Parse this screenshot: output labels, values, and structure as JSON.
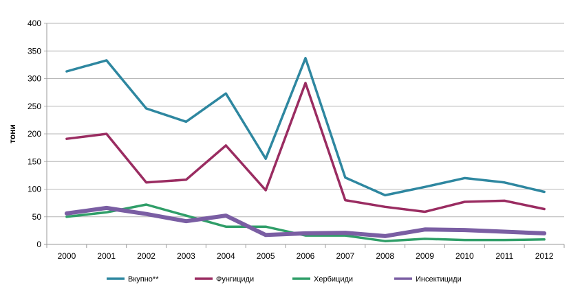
{
  "chart_data": {
    "type": "line",
    "title": "",
    "xlabel": "",
    "ylabel": "тони",
    "ylim": [
      0,
      400
    ],
    "yticks": [
      0,
      50,
      100,
      150,
      200,
      250,
      300,
      350,
      400
    ],
    "grid": true,
    "legend_position": "bottom",
    "categories": [
      "2000",
      "2001",
      "2002",
      "2003",
      "2004",
      "2005",
      "2006",
      "2007",
      "2008",
      "2009",
      "2010",
      "2011",
      "2012"
    ],
    "series": [
      {
        "name": "Вкупно**",
        "color": "#2e87a0",
        "width": 3.5,
        "values": [
          313,
          333,
          246,
          222,
          273,
          155,
          337,
          121,
          89,
          104,
          120,
          112,
          95
        ]
      },
      {
        "name": "Фунгициди",
        "color": "#9a2c61",
        "width": 3.5,
        "values": [
          191,
          200,
          112,
          117,
          179,
          98,
          292,
          80,
          68,
          59,
          77,
          79,
          64
        ]
      },
      {
        "name": "Хербициди",
        "color": "#2f9e68",
        "width": 3.5,
        "values": [
          50,
          58,
          72,
          52,
          32,
          32,
          16,
          16,
          6,
          10,
          8,
          8,
          9
        ]
      },
      {
        "name": "Инсектициди",
        "color": "#7a5ea3",
        "width": 6,
        "values": [
          56,
          66,
          55,
          42,
          52,
          17,
          20,
          21,
          15,
          27,
          26,
          23,
          20
        ]
      }
    ]
  }
}
